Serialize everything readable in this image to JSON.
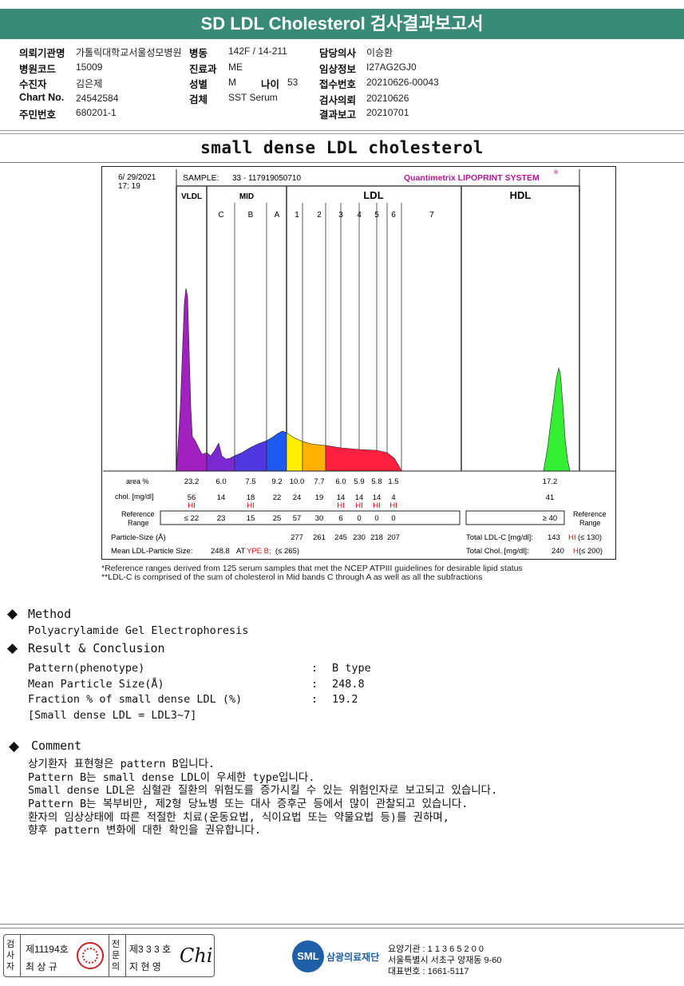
{
  "header": {
    "title": "SD LDL Cholesterol 검사결과보고서",
    "info": {
      "hospital_label": "의뢰기관명",
      "hospital": "가톨릭대학교서울성모병원",
      "ward_label": "병동",
      "ward": "142F / 14-211",
      "doctor_label": "담당의사",
      "doctor": "이승환",
      "code_label": "병원코드",
      "code": "15009",
      "dept_label": "진료과",
      "dept": "ME",
      "clinical_label": "임상정보",
      "clinical": "I27AG2GJ0",
      "patient_label": "수진자",
      "patient": "김은제",
      "sex_label": "성별",
      "sex": "M",
      "age_label": "나이",
      "age": "53",
      "receipt_label": "접수번호",
      "receipt": "20210626-00043",
      "chart_label": "Chart No.",
      "chart": "24542584",
      "specimen_label": "검체",
      "specimen": "SST Serum",
      "request_label": "검사의뢰",
      "request": "20210626",
      "id_label": "주민번호",
      "id": "680201-1",
      "report_label": "결과보고",
      "report": "20210701"
    }
  },
  "section_title": "small dense LDL cholesterol",
  "chart_data": {
    "type": "area",
    "date": "6/ 29/2021",
    "time": "17: 19",
    "sample_label": "SAMPLE:",
    "sample_id": "33 - 117919050710",
    "brand": "Quantimetrix LIPOPRINT SYSTEM",
    "brand_mark": "®",
    "groups": [
      "VLDL",
      "MID",
      "LDL",
      "HDL"
    ],
    "subbands": [
      "C",
      "B",
      "A",
      "1",
      "2",
      "3",
      "4",
      "5",
      "6",
      "7"
    ],
    "rows": {
      "area_label": "area %",
      "chol_label": "chol. [mg/dl]",
      "ref_label": "Reference Range",
      "ref_label_right": "Reference Range"
    },
    "bands": [
      {
        "name": "VLDL",
        "area": "23.2",
        "chol": "56",
        "flag": "HI",
        "ref": "≤ 22"
      },
      {
        "name": "C",
        "area": "6.0",
        "chol": "14",
        "flag": "",
        "ref": "23"
      },
      {
        "name": "B",
        "area": "7.5",
        "chol": "18",
        "flag": "HI",
        "ref": "15"
      },
      {
        "name": "A",
        "area": "9.2",
        "chol": "22",
        "flag": "",
        "ref": "25"
      },
      {
        "name": "1",
        "area": "10.0",
        "chol": "24",
        "flag": "",
        "ref": "57",
        "size": "277"
      },
      {
        "name": "2",
        "area": "7.7",
        "chol": "19",
        "flag": "",
        "ref": "30",
        "size": "261"
      },
      {
        "name": "3",
        "area": "6.0",
        "chol": "14",
        "flag": "HI",
        "ref": "6",
        "size": "245"
      },
      {
        "name": "4",
        "area": "5.9",
        "chol": "14",
        "flag": "HI",
        "ref": "0",
        "size": "230"
      },
      {
        "name": "5",
        "area": "5.8",
        "chol": "14",
        "flag": "HI",
        "ref": "0",
        "size": "218"
      },
      {
        "name": "6",
        "area": "1.5",
        "chol": "4",
        "flag": "HI",
        "ref": "0",
        "size": "207"
      }
    ],
    "hdl": {
      "area": "17.2",
      "chol": "41",
      "ref": "≥ 40"
    },
    "particle_size_label": "Particle-Size (Å)",
    "mean_size_label": "Mean LDL-Particle Size:",
    "mean_size_value": "248.8",
    "mean_size_type_a": "AT",
    "mean_size_type_b": "YPE B;",
    "mean_size_ref": "(≤ 265)",
    "total_ldl_label": "Total LDL-C [mg/dl]:",
    "total_ldl_value": "143",
    "total_ldl_flag": "HI",
    "total_ldl_ref": "(≤ 130)",
    "total_chol_label": "Total Chol. [mg/dl]:",
    "total_chol_value": "240",
    "total_chol_flag": "H",
    "total_chol_ref": "(≤ 200)",
    "colors": {
      "vldl": "#a020c0",
      "c": "#7a2ad0",
      "b": "#5038e0",
      "a": "#1f58ee",
      "l1": "#ffee00",
      "l2": "#ffb000",
      "l3": "#ff2040",
      "hdl": "#33ee33",
      "flag": "#d01010"
    }
  },
  "footnotes": {
    "line1": "*Reference ranges derived from 125 serum samples that met the NCEP ATPIII guidelines for desirable lipid status",
    "line2": "**LDL-C is comprised of the sum of cholesterol in Mid bands C through A as well as all the subfractions"
  },
  "method": {
    "heading": "Method",
    "text": "Polyacrylamide Gel Electrophoresis"
  },
  "result": {
    "heading": "Result & Conclusion",
    "rows": [
      {
        "label": "Pattern(phenotype)",
        "value": "B type"
      },
      {
        "label": "Mean Particle Size(Å)",
        "value": "248.8"
      },
      {
        "label": "Fraction % of small dense LDL (%)",
        "value": "19.2"
      }
    ],
    "sep": ":",
    "note": "[Small dense LDL = LDL3~7]"
  },
  "comment": {
    "heading": "Comment",
    "lines": [
      "상기환자 표현형은 pattern B입니다.",
      "Pattern B는 small dense LDL이 우세한 type입니다.",
      "Small dense LDL은 심혈관 질환의 위험도를 증가시킬 수 있는 위험인자로 보고되고 있습니다.",
      "Pattern B는 복부비만, 제2형 당뇨병 또는 대사 증후군 등에서 많이 관찰되고 있습니다.",
      "환자의 임상상태에 따른 적절한 치료(운동요법, 식이요법 또는 약물요법 등)를 권하며,",
      "향후 pattern 변화에 대한 확인을 권유합니다."
    ]
  },
  "footer": {
    "examiner_label": "검사자",
    "examiner_no": "제11194호",
    "examiner_name": "최 상 규",
    "specialist_label": "전문의",
    "specialist_no": "제3 3 3 호",
    "specialist_name": "지 현 영",
    "signature": "Chi",
    "logo_text": "SML",
    "org_name": "삼광의료재단",
    "care_label": "요양기관 : 1 1 3 6 5 2 0 0",
    "address": "서울특별시 서초구 양재동 9-60",
    "phone": "대표번호 : 1661-5117"
  }
}
